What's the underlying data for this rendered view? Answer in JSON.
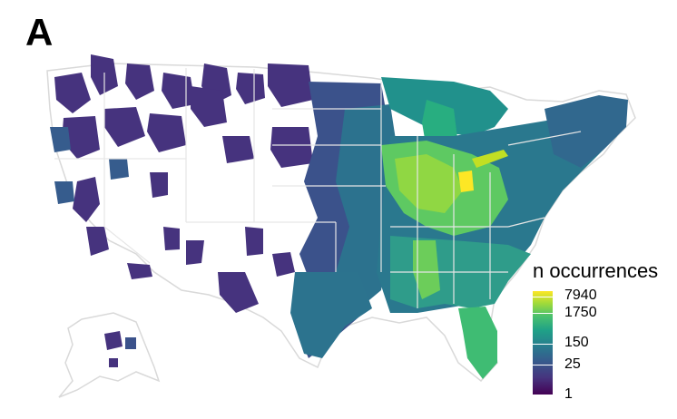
{
  "panel_label": "A",
  "legend": {
    "title": "n occurrences",
    "ticks": [
      "7940",
      "1750",
      "150",
      "25",
      "1"
    ],
    "colors": [
      "#440154",
      "#46337e",
      "#365c8d",
      "#277f8e",
      "#1fa187",
      "#4ac16d",
      "#9fda3a",
      "#fde725"
    ]
  },
  "map_colors": {
    "outline": "#d9d9d9",
    "state_border": "#e6e6e6",
    "background_land": "#ffffff"
  }
}
